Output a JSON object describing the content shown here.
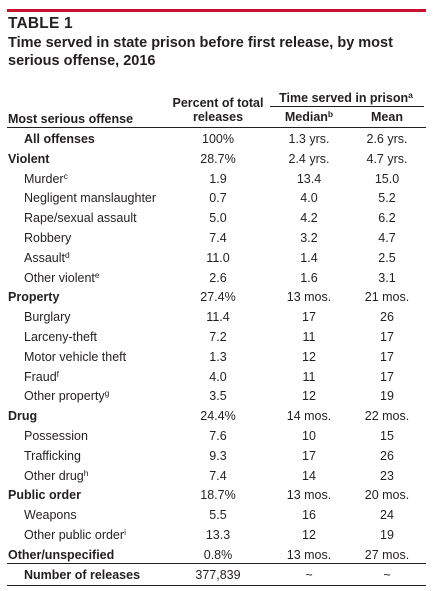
{
  "table": {
    "label": "TABLE 1",
    "title": "Time served in state prison before first release, by most serious offense, 2016",
    "headers": {
      "offense": "Most serious offense",
      "percent": "Percent of total releases",
      "time_served": "Time served in prison",
      "time_served_note": "a",
      "median": "Median",
      "median_note": "b",
      "mean": "Mean"
    },
    "rows": [
      {
        "type": "summary",
        "label": "All offenses",
        "note": "",
        "pct": "100%",
        "median": "1.3 yrs.",
        "mean": "2.6 yrs."
      },
      {
        "type": "category",
        "label": "Violent",
        "note": "",
        "pct": "28.7%",
        "median": "2.4 yrs.",
        "mean": "4.7 yrs."
      },
      {
        "type": "item",
        "label": "Murder",
        "note": "c",
        "pct": "1.9",
        "median": "13.4",
        "mean": "15.0"
      },
      {
        "type": "item",
        "label": "Negligent manslaughter",
        "note": "",
        "pct": "0.7",
        "median": "4.0",
        "mean": "5.2"
      },
      {
        "type": "item",
        "label": "Rape/sexual assault",
        "note": "",
        "pct": "5.0",
        "median": "4.2",
        "mean": "6.2"
      },
      {
        "type": "item",
        "label": "Robbery",
        "note": "",
        "pct": "7.4",
        "median": "3.2",
        "mean": "4.7"
      },
      {
        "type": "item",
        "label": "Assault",
        "note": "d",
        "pct": "11.0",
        "median": "1.4",
        "mean": "2.5"
      },
      {
        "type": "item",
        "label": "Other violent",
        "note": "e",
        "pct": "2.6",
        "median": "1.6",
        "mean": "3.1"
      },
      {
        "type": "category",
        "label": "Property",
        "note": "",
        "pct": "27.4%",
        "median": "13 mos.",
        "mean": "21 mos."
      },
      {
        "type": "item",
        "label": "Burglary",
        "note": "",
        "pct": "11.4",
        "median": "17",
        "mean": "26"
      },
      {
        "type": "item",
        "label": "Larceny-theft",
        "note": "",
        "pct": "7.2",
        "median": "11",
        "mean": "17"
      },
      {
        "type": "item",
        "label": "Motor vehicle theft",
        "note": "",
        "pct": "1.3",
        "median": "12",
        "mean": "17"
      },
      {
        "type": "item",
        "label": "Fraud",
        "note": "f",
        "pct": "4.0",
        "median": "11",
        "mean": "17"
      },
      {
        "type": "item",
        "label": "Other property",
        "note": "g",
        "pct": "3.5",
        "median": "12",
        "mean": "19"
      },
      {
        "type": "category",
        "label": "Drug",
        "note": "",
        "pct": "24.4%",
        "median": "14 mos.",
        "mean": "22 mos."
      },
      {
        "type": "item",
        "label": "Possession",
        "note": "",
        "pct": "7.6",
        "median": "10",
        "mean": "15"
      },
      {
        "type": "item",
        "label": "Trafficking",
        "note": "",
        "pct": "9.3",
        "median": "17",
        "mean": "26"
      },
      {
        "type": "item",
        "label": "Other drug",
        "note": "h",
        "pct": "7.4",
        "median": "14",
        "mean": "23"
      },
      {
        "type": "category",
        "label": "Public order",
        "note": "",
        "pct": "18.7%",
        "median": "13 mos.",
        "mean": "20 mos."
      },
      {
        "type": "item",
        "label": "Weapons",
        "note": "",
        "pct": "5.5",
        "median": "16",
        "mean": "24"
      },
      {
        "type": "item",
        "label": "Other public order",
        "note": "i",
        "pct": "13.3",
        "median": "12",
        "mean": "19"
      },
      {
        "type": "category",
        "label": "Other/unspecified",
        "note": "",
        "pct": "0.8%",
        "median": "13 mos.",
        "mean": "27 mos."
      }
    ],
    "footer": {
      "label": "Number of releases",
      "pct": "377,839",
      "median": "~",
      "mean": "~"
    },
    "accent_color": "#c8102e"
  }
}
